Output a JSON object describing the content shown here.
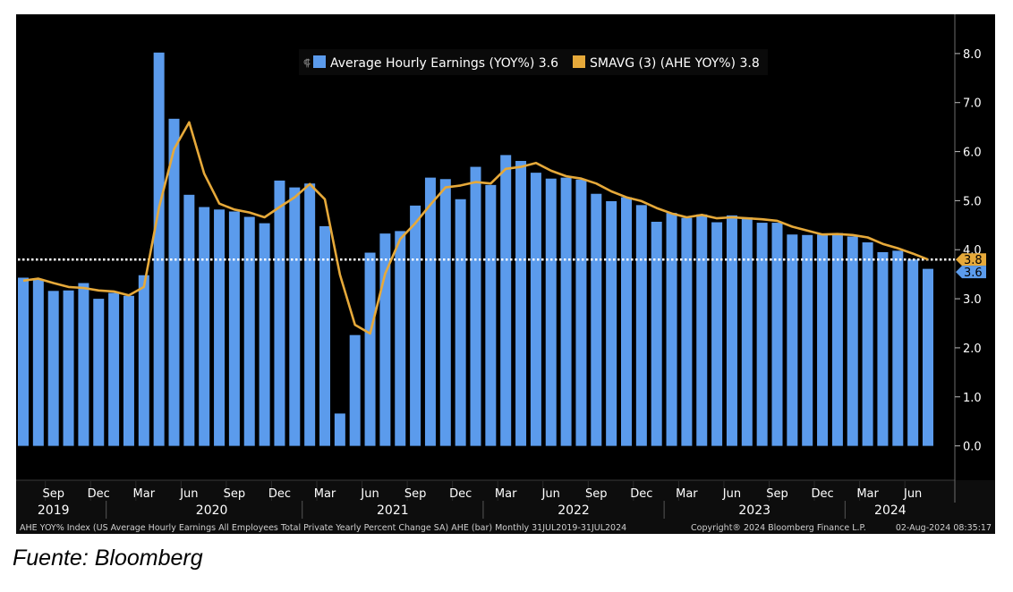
{
  "chart_data": {
    "type": "bar",
    "title": "",
    "xlabel": "",
    "ylabel": "",
    "ylim": [
      -0.7,
      8.8
    ],
    "y_ticks": [
      "0.0",
      "1.0",
      "2.0",
      "3.0",
      "4.0",
      "5.0",
      "6.0",
      "7.0",
      "8.0"
    ],
    "grid": false,
    "legend_position": "top-center",
    "colors": {
      "background": "#000000",
      "bar": "#5b9bec",
      "line": "#e6a93a",
      "text": "#ffffff"
    },
    "legend": {
      "bar_label": "Average Hourly Earnings (YOY%) 3.6",
      "line_label": "SMAVG (3) (AHE YOY%) 3.8"
    },
    "series": [
      {
        "name": "Average Hourly Earnings (YOY%)",
        "type": "bar",
        "values": [
          3.43,
          3.4,
          3.16,
          3.17,
          3.32,
          3.0,
          3.12,
          3.06,
          3.48,
          8.02,
          6.67,
          5.12,
          4.87,
          4.82,
          4.78,
          4.67,
          4.54,
          5.41,
          5.27,
          5.35,
          4.48,
          0.66,
          2.26,
          3.94,
          4.33,
          4.38,
          4.9,
          5.47,
          5.44,
          5.03,
          5.69,
          5.32,
          5.93,
          5.81,
          5.57,
          5.45,
          5.47,
          5.43,
          5.14,
          4.99,
          5.07,
          4.91,
          4.57,
          4.75,
          4.65,
          4.72,
          4.56,
          4.7,
          4.66,
          4.55,
          4.55,
          4.31,
          4.3,
          4.31,
          4.34,
          4.27,
          4.15,
          3.95,
          3.98,
          3.8,
          3.61
        ]
      },
      {
        "name": "SMAVG (3) (AHE YOY%)",
        "type": "line",
        "values": [
          3.37,
          3.41,
          3.32,
          3.24,
          3.22,
          3.17,
          3.15,
          3.07,
          3.24,
          4.86,
          6.05,
          6.6,
          5.55,
          4.94,
          4.82,
          4.76,
          4.66,
          4.87,
          5.07,
          5.34,
          5.03,
          3.49,
          2.47,
          2.29,
          3.51,
          4.22,
          4.54,
          4.92,
          5.27,
          5.31,
          5.38,
          5.35,
          5.65,
          5.69,
          5.77,
          5.61,
          5.5,
          5.45,
          5.35,
          5.19,
          5.07,
          4.99,
          4.85,
          4.74,
          4.66,
          4.71,
          4.64,
          4.66,
          4.64,
          4.62,
          4.59,
          4.47,
          4.39,
          4.31,
          4.32,
          4.3,
          4.25,
          4.12,
          4.03,
          3.92,
          3.8
        ]
      }
    ],
    "x_month_labels": [
      "Sep",
      "Dec",
      "Mar",
      "Jun",
      "Sep",
      "Dec",
      "Mar",
      "Jun",
      "Sep",
      "Dec",
      "Mar",
      "Jun",
      "Sep",
      "Dec",
      "Mar",
      "Jun",
      "Sep",
      "Dec",
      "Mar",
      "Jun"
    ],
    "x_year_labels": [
      "2019",
      "2020",
      "2021",
      "2022",
      "2023",
      "2024"
    ],
    "last_value_labels": {
      "line": "3.8",
      "bar": "3.6"
    },
    "reference_line_value": 3.8
  },
  "footer": {
    "description": "AHE YOY% Index (US Average Hourly Earnings All Employees Total Private Yearly Percent Change SA) AHE (bar) Monthly 31JUL2019-31JUL2024",
    "copyright": "Copyright® 2024 Bloomberg Finance L.P.",
    "timestamp": "02-Aug-2024 08:35:17"
  },
  "source": "Fuente: Bloomberg"
}
